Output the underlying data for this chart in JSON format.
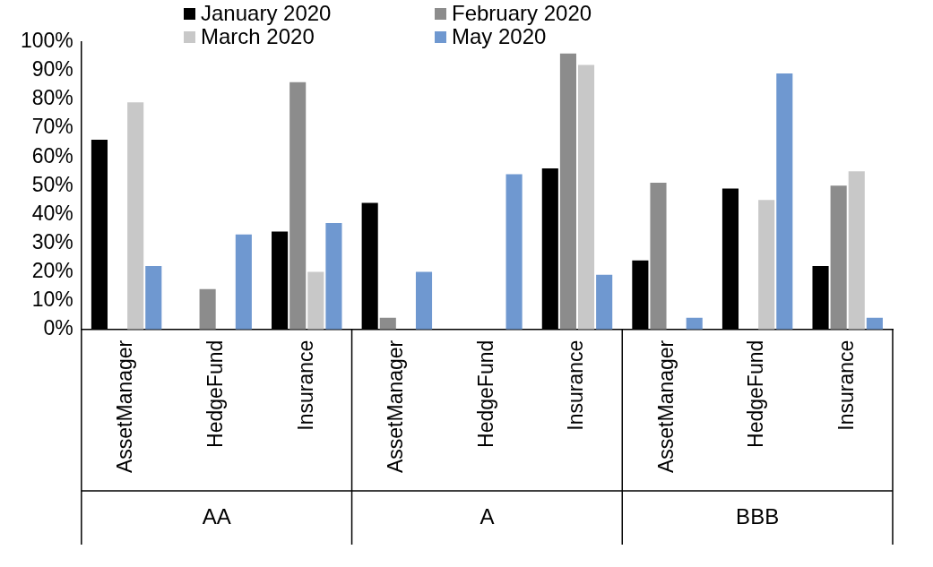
{
  "chart_data": {
    "type": "bar",
    "categories": [
      "AssetManager",
      "HedgeFund",
      "Insurance",
      "AssetManager",
      "HedgeFund",
      "Insurance",
      "AssetManager",
      "HedgeFund",
      "Insurance"
    ],
    "series": [
      {
        "name": "January 2020",
        "color": "#000000",
        "values": [
          66,
          0,
          34,
          44,
          0,
          56,
          24,
          49,
          22
        ]
      },
      {
        "name": "February 2020",
        "color": "#8c8c8c",
        "values": [
          0,
          14,
          86,
          4,
          0,
          96,
          51,
          0,
          50
        ]
      },
      {
        "name": "March 2020",
        "color": "#c8c8c8",
        "values": [
          79,
          0,
          20,
          0,
          0,
          92,
          0,
          45,
          55
        ]
      },
      {
        "name": "May 2020",
        "color": "#6f98d0",
        "values": [
          22,
          33,
          37,
          20,
          54,
          19,
          4,
          89,
          4
        ]
      }
    ],
    "annotations": [
      "AA",
      "A",
      "BBB"
    ],
    "ylim": [
      0,
      100
    ],
    "yticks": [
      {
        "value": 0,
        "label": "0%"
      },
      {
        "value": 10,
        "label": "10%"
      },
      {
        "value": 20,
        "label": "20%"
      },
      {
        "value": 30,
        "label": "30%"
      },
      {
        "value": 40,
        "label": "40%"
      },
      {
        "value": 50,
        "label": "50%"
      },
      {
        "value": 60,
        "label": "60%"
      },
      {
        "value": 70,
        "label": "70%"
      },
      {
        "value": 80,
        "label": "80%"
      },
      {
        "value": 90,
        "label": "90%"
      },
      {
        "value": 100,
        "label": "100%"
      }
    ],
    "grid": false,
    "legend": "top"
  }
}
